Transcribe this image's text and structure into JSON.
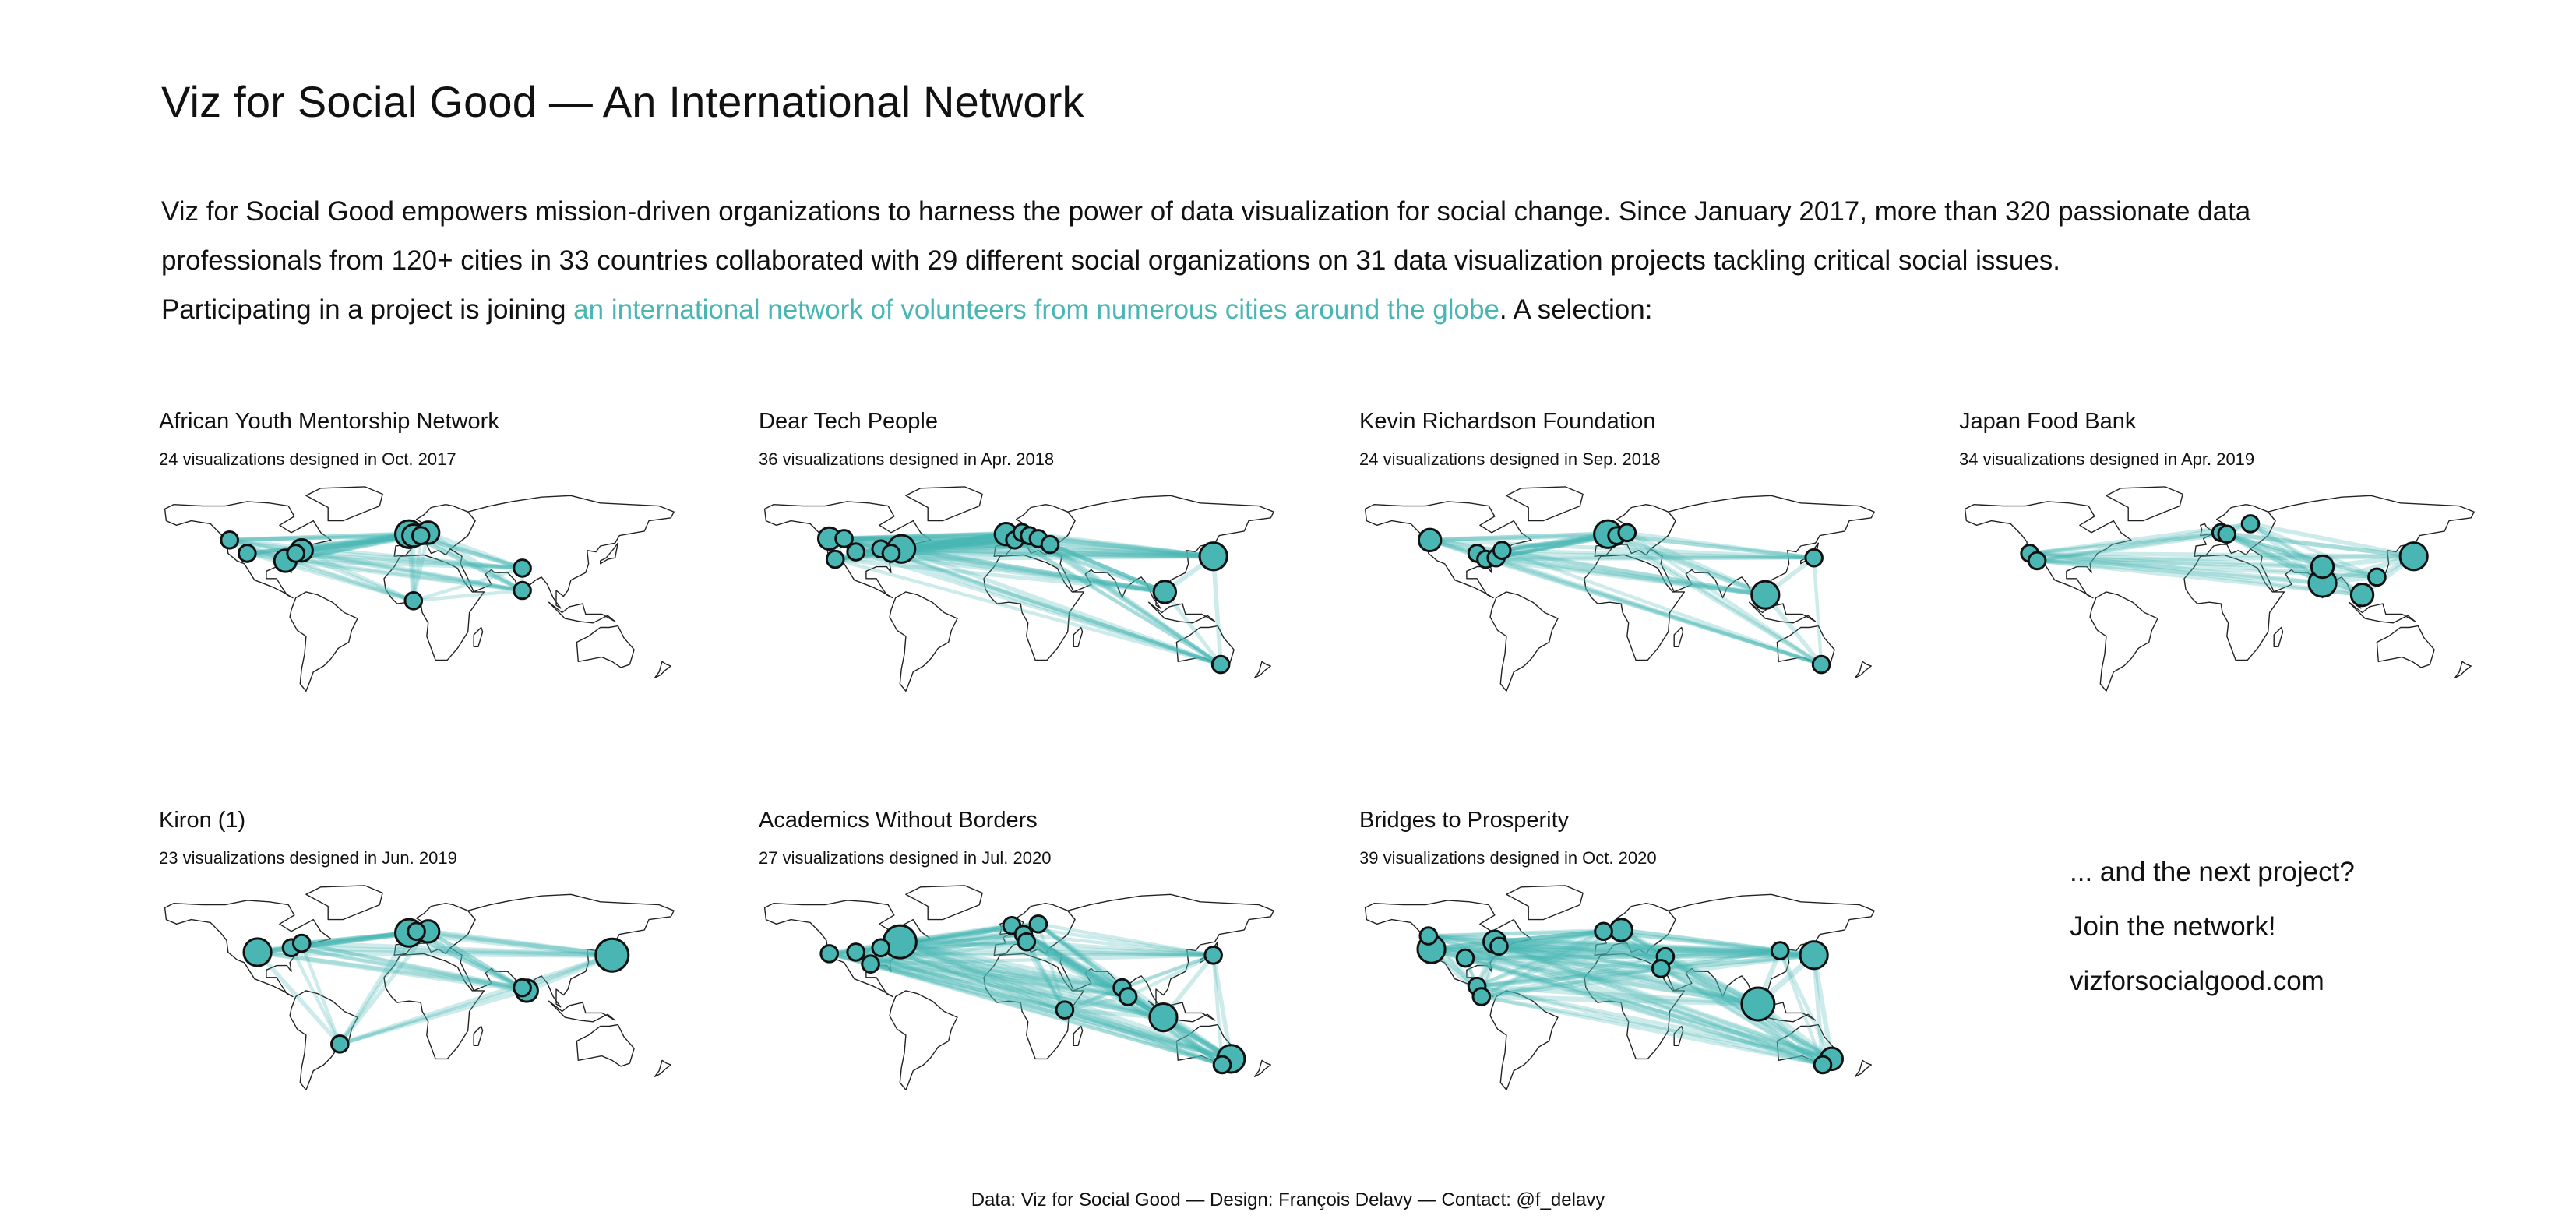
{
  "header": {
    "title": "Viz for Social Good — An International Network",
    "intro_line1": "Viz for Social Good empowers mission-driven organizations to harness the power of data visualization for social change. Since January 2017, more than 320 passionate data",
    "intro_line2": "professionals from 120+ cities in 33 countries collaborated with 29 different social organizations on 31 data visualization projects tackling critical social issues.",
    "intro_line3_prefix": "Participating in a project is joining ",
    "intro_link": "an international network of volunteers from numerous cities around the globe",
    "intro_line3_suffix": ". A selection:"
  },
  "colors": {
    "accent": "#49b6b3",
    "node_fill": "#49b6b3",
    "node_stroke": "#111111",
    "land_stroke": "#222222"
  },
  "projects": [
    {
      "name": "African Youth Mentorship Network",
      "subtitle": "24 visualizations designed in Oct. 2017",
      "hub": [
        40,
        52
      ],
      "nodes": [
        {
          "lon": -122,
          "lat": 47,
          "size": 2
        },
        {
          "lon": -110,
          "lat": 38,
          "size": 2
        },
        {
          "lon": -84,
          "lat": 33,
          "size": 3
        },
        {
          "lon": -77,
          "lat": 38,
          "size": 2
        },
        {
          "lon": -73,
          "lat": 40,
          "size": 3
        },
        {
          "lon": 0,
          "lat": 51,
          "size": 4
        },
        {
          "lon": 3,
          "lat": 50,
          "size": 3
        },
        {
          "lon": 8,
          "lat": 50,
          "size": 2
        },
        {
          "lon": 13,
          "lat": 52,
          "size": 3
        },
        {
          "lon": 77,
          "lat": 28,
          "size": 2
        },
        {
          "lon": 77,
          "lat": 13,
          "size": 2
        },
        {
          "lon": 3,
          "lat": 6,
          "size": 2
        }
      ]
    },
    {
      "name": "Dear Tech People",
      "subtitle": "36 visualizations designed in Apr. 2018",
      "hub": [
        88,
        10
      ],
      "nodes": [
        {
          "lon": -122,
          "lat": 48,
          "size": 3
        },
        {
          "lon": -112,
          "lat": 48,
          "size": 2
        },
        {
          "lon": -118,
          "lat": 34,
          "size": 2
        },
        {
          "lon": -104,
          "lat": 39,
          "size": 2
        },
        {
          "lon": -87,
          "lat": 41,
          "size": 2
        },
        {
          "lon": -80,
          "lat": 38,
          "size": 2
        },
        {
          "lon": -73,
          "lat": 41,
          "size": 4
        },
        {
          "lon": -2,
          "lat": 51,
          "size": 3
        },
        {
          "lon": 4,
          "lat": 47,
          "size": 2
        },
        {
          "lon": 9,
          "lat": 52,
          "size": 2
        },
        {
          "lon": 14,
          "lat": 50,
          "size": 2
        },
        {
          "lon": 20,
          "lat": 48,
          "size": 2
        },
        {
          "lon": 28,
          "lat": 44,
          "size": 2
        },
        {
          "lon": 139,
          "lat": 36,
          "size": 4
        },
        {
          "lon": 106,
          "lat": 12,
          "size": 3
        },
        {
          "lon": 144,
          "lat": -37,
          "size": 2
        }
      ]
    },
    {
      "name": "Kevin Richardson Foundation",
      "subtitle": "24 visualizations designed in Sep. 2018",
      "hub": [
        60,
        25
      ],
      "nodes": [
        {
          "lon": -122,
          "lat": 47,
          "size": 3
        },
        {
          "lon": -90,
          "lat": 38,
          "size": 2
        },
        {
          "lon": -84,
          "lat": 34,
          "size": 2
        },
        {
          "lon": -77,
          "lat": 35,
          "size": 2
        },
        {
          "lon": -73,
          "lat": 40,
          "size": 2
        },
        {
          "lon": -1,
          "lat": 51,
          "size": 4
        },
        {
          "lon": 5,
          "lat": 50,
          "size": 2
        },
        {
          "lon": 12,
          "lat": 52,
          "size": 2
        },
        {
          "lon": 139,
          "lat": 35,
          "size": 2
        },
        {
          "lon": 106,
          "lat": 10,
          "size": 4
        },
        {
          "lon": 144,
          "lat": -37,
          "size": 2
        }
      ]
    },
    {
      "name": "Japan Food Bank",
      "subtitle": "34 visualizations designed in Apr. 2019",
      "hub": [
        50,
        45
      ],
      "nodes": [
        {
          "lon": -122,
          "lat": 38,
          "size": 2
        },
        {
          "lon": -117,
          "lat": 33,
          "size": 2
        },
        {
          "lon": 8,
          "lat": 52,
          "size": 2
        },
        {
          "lon": 12,
          "lat": 51,
          "size": 2
        },
        {
          "lon": 28,
          "lat": 58,
          "size": 2
        },
        {
          "lon": 139,
          "lat": 36,
          "size": 4
        },
        {
          "lon": 77,
          "lat": 29,
          "size": 3
        },
        {
          "lon": 77,
          "lat": 18,
          "size": 4
        },
        {
          "lon": 114,
          "lat": 22,
          "size": 2
        },
        {
          "lon": 104,
          "lat": 10,
          "size": 3
        }
      ]
    },
    {
      "name": "Kiron (1)",
      "subtitle": "23 visualizations designed in Jun. 2019",
      "hub": [
        15,
        48
      ],
      "nodes": [
        {
          "lon": -103,
          "lat": 38,
          "size": 4
        },
        {
          "lon": -80,
          "lat": 41,
          "size": 2
        },
        {
          "lon": -73,
          "lat": 44,
          "size": 2
        },
        {
          "lon": 0,
          "lat": 51,
          "size": 4
        },
        {
          "lon": 5,
          "lat": 52,
          "size": 2
        },
        {
          "lon": 13,
          "lat": 52,
          "size": 3
        },
        {
          "lon": 138,
          "lat": 36,
          "size": 5
        },
        {
          "lon": 80,
          "lat": 12,
          "size": 3
        },
        {
          "lon": 77,
          "lat": 14,
          "size": 2
        },
        {
          "lon": -47,
          "lat": -24,
          "size": 2
        }
      ]
    },
    {
      "name": "Academics Without Borders",
      "subtitle": "27 visualizations designed in Jul. 2020",
      "hub": [
        -73,
        45
      ],
      "nodes": [
        {
          "lon": -122,
          "lat": 37,
          "size": 2
        },
        {
          "lon": -104,
          "lat": 38,
          "size": 2
        },
        {
          "lon": -94,
          "lat": 30,
          "size": 2
        },
        {
          "lon": -87,
          "lat": 41,
          "size": 2
        },
        {
          "lon": -74,
          "lat": 45,
          "size": 5
        },
        {
          "lon": 2,
          "lat": 56,
          "size": 2
        },
        {
          "lon": 10,
          "lat": 50,
          "size": 2
        },
        {
          "lon": 20,
          "lat": 57,
          "size": 2
        },
        {
          "lon": 12,
          "lat": 45,
          "size": 2
        },
        {
          "lon": 38,
          "lat": -1,
          "size": 2
        },
        {
          "lon": 77,
          "lat": 14,
          "size": 2
        },
        {
          "lon": 81,
          "lat": 8,
          "size": 2
        },
        {
          "lon": 139,
          "lat": 36,
          "size": 2
        },
        {
          "lon": 105,
          "lat": -6,
          "size": 4
        },
        {
          "lon": 151,
          "lat": -34,
          "size": 4
        },
        {
          "lon": 145,
          "lat": -38,
          "size": 2
        }
      ]
    },
    {
      "name": "Bridges to Prosperity",
      "subtitle": "39 visualizations designed in Oct. 2020",
      "hub": [
        -95,
        10
      ],
      "nodes": [
        {
          "lon": -123,
          "lat": 49,
          "size": 2
        },
        {
          "lon": -121,
          "lat": 40,
          "size": 4
        },
        {
          "lon": -98,
          "lat": 34,
          "size": 2
        },
        {
          "lon": -78,
          "lat": 45,
          "size": 3
        },
        {
          "lon": -75,
          "lat": 42,
          "size": 2
        },
        {
          "lon": -90,
          "lat": 15,
          "size": 2
        },
        {
          "lon": -87,
          "lat": 8,
          "size": 2
        },
        {
          "lon": -4,
          "lat": 52,
          "size": 2
        },
        {
          "lon": 8,
          "lat": 53,
          "size": 3
        },
        {
          "lon": 38,
          "lat": 35,
          "size": 2
        },
        {
          "lon": 35,
          "lat": 27,
          "size": 2
        },
        {
          "lon": 101,
          "lat": 3,
          "size": 5
        },
        {
          "lon": 139,
          "lat": 36,
          "size": 4
        },
        {
          "lon": 116,
          "lat": 39,
          "size": 2
        },
        {
          "lon": 151,
          "lat": -34,
          "size": 3
        },
        {
          "lon": 145,
          "lat": -38,
          "size": 2
        }
      ]
    }
  ],
  "cta": {
    "line1": "... and the next project?",
    "line2": "Join the network!",
    "line3": "vizforsocialgood.com"
  },
  "footer": "Data: Viz for Social Good — Design: François Delavy — Contact: @f_delavy"
}
